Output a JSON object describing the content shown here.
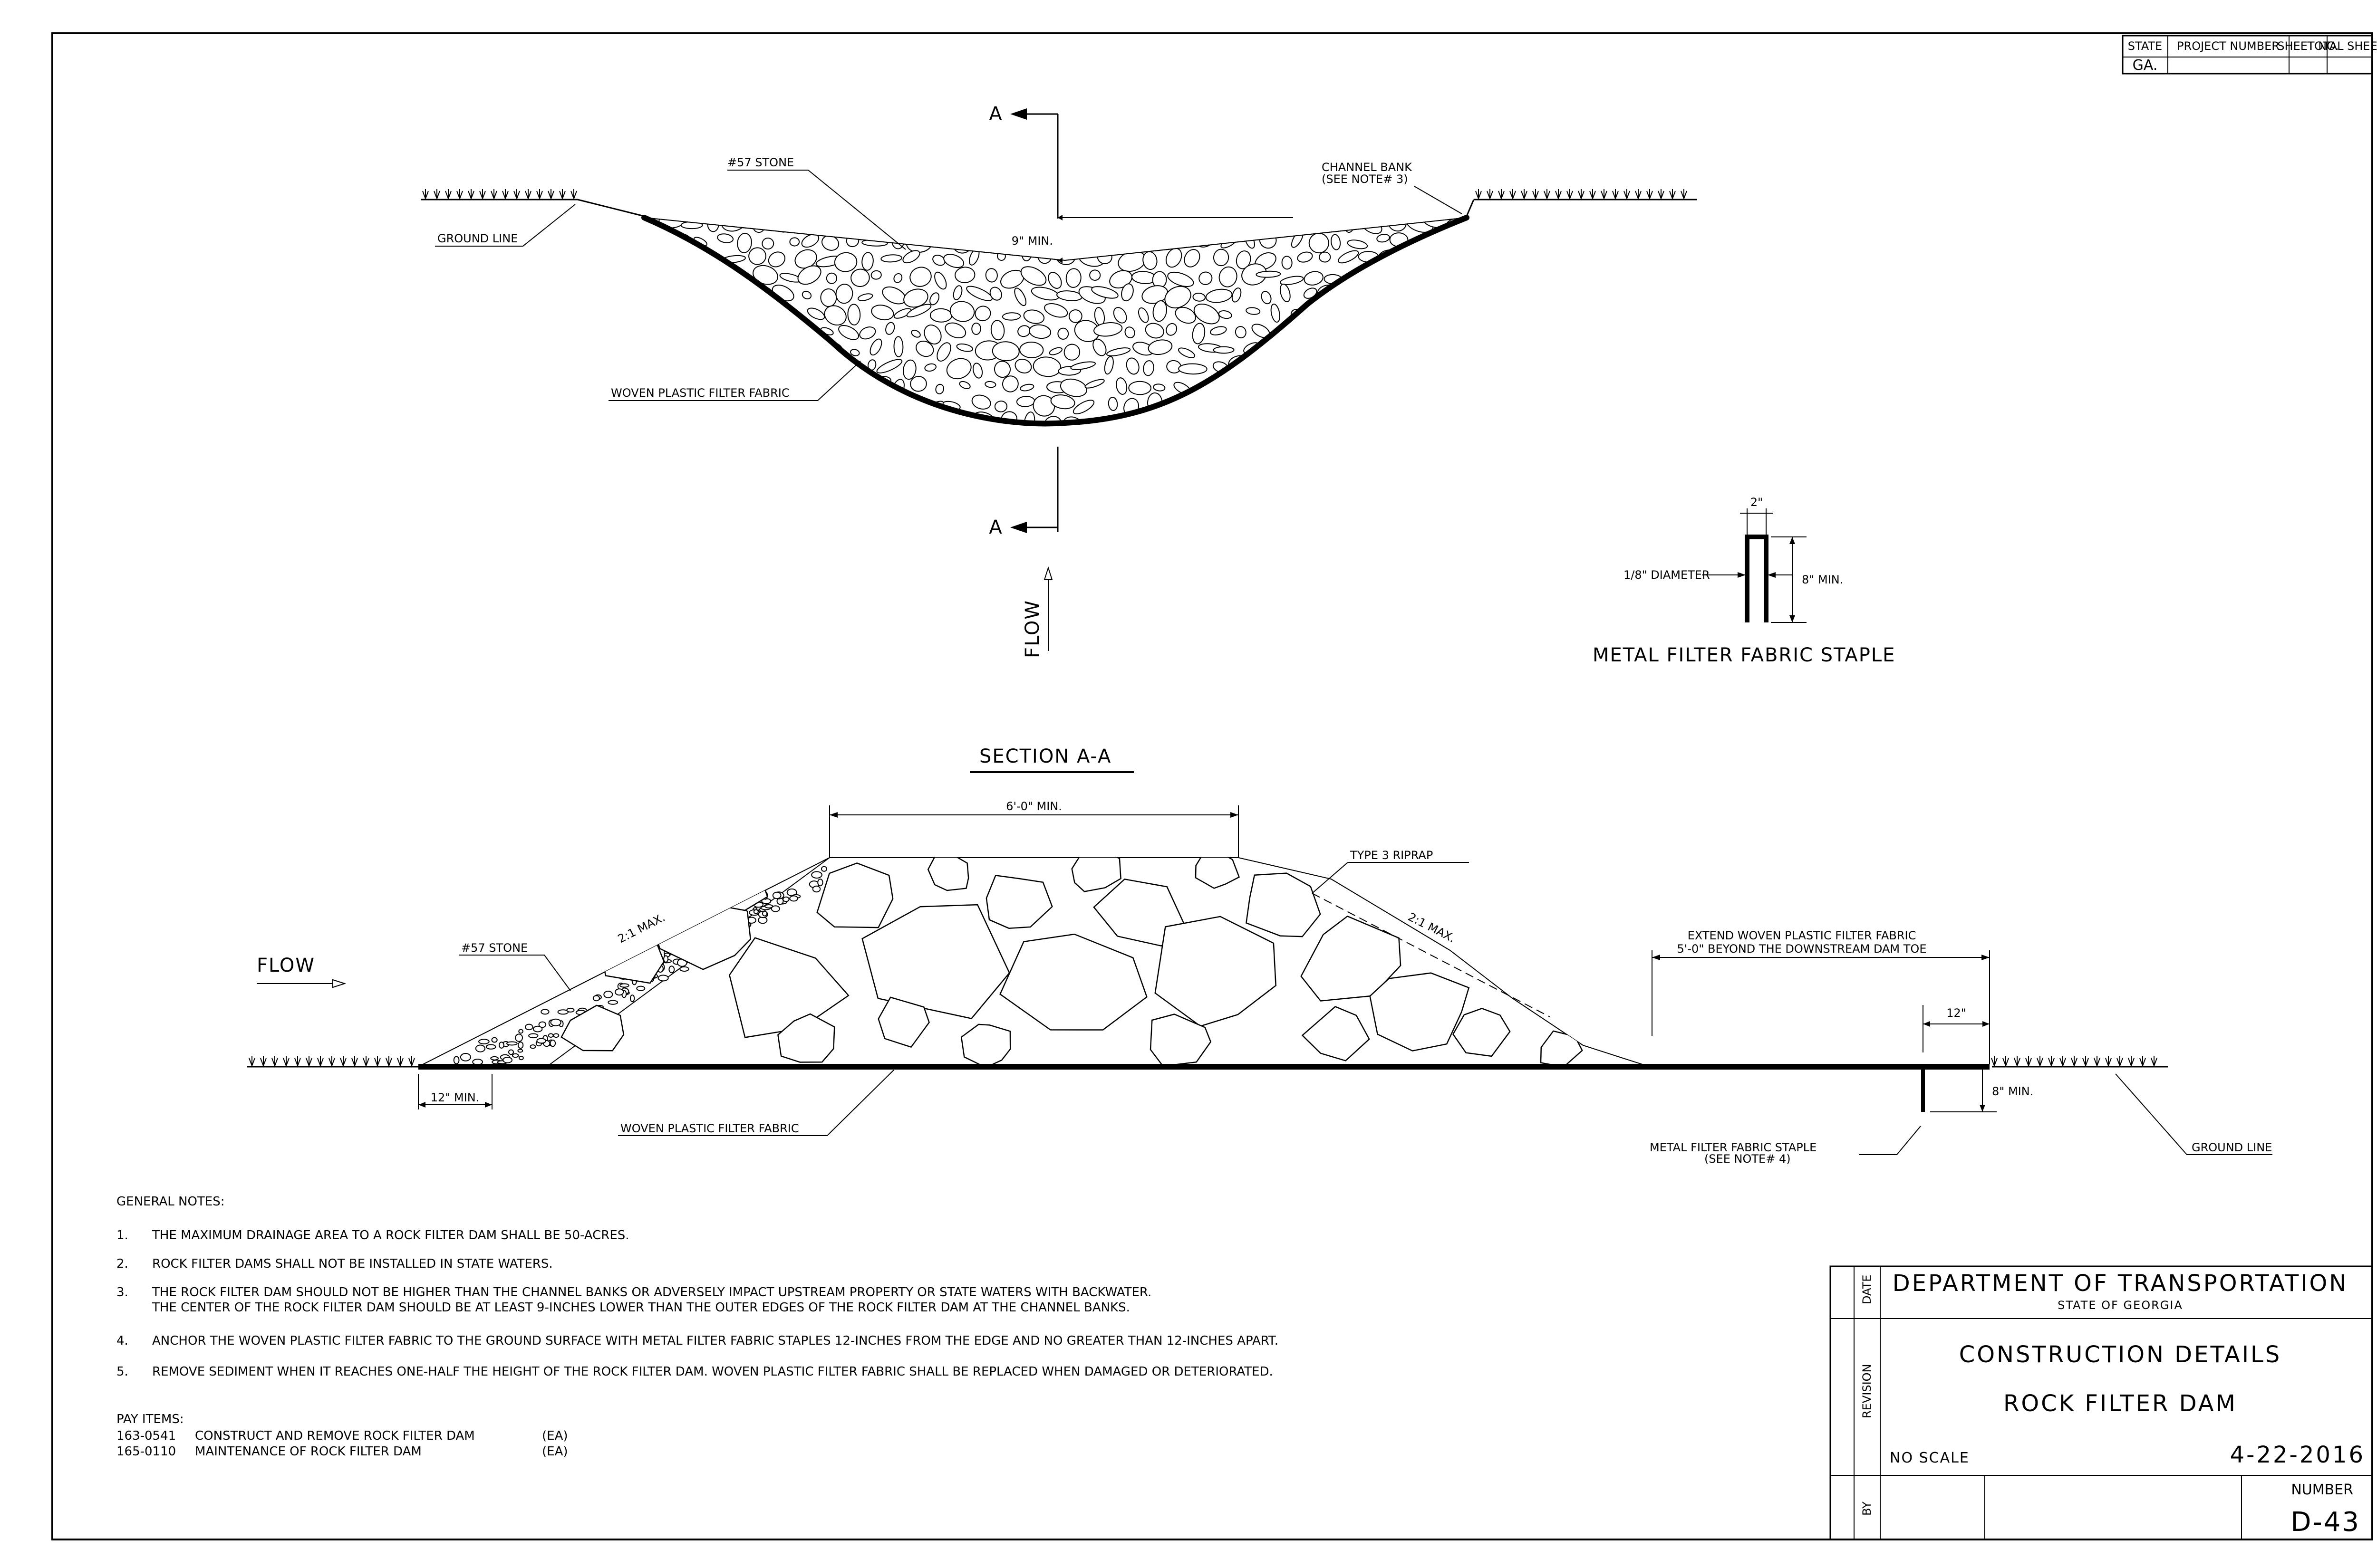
{
  "title_block_top": {
    "headers": [
      "STATE",
      "PROJECT NUMBER",
      "SHEET NO.",
      "TOTAL SHEETS"
    ],
    "state_value": "GA."
  },
  "plan_view": {
    "stone_label": "#57 STONE",
    "channel_bank_label": "CHANNEL BANK",
    "channel_bank_note": "(SEE NOTE# 3)",
    "ground_line_label": "GROUND LINE",
    "dim_9_min": "9\" MIN.",
    "fabric_label": "WOVEN PLASTIC FILTER FABRIC",
    "section_marker": "A",
    "flow_label": "FLOW"
  },
  "staple_detail": {
    "width_dim": "2\"",
    "diameter_label": "1/8\" DIAMETER",
    "height_dim": "8\" MIN.",
    "title": "METAL FILTER FABRIC STAPLE"
  },
  "section_view": {
    "title": "SECTION A-A",
    "top_width_dim": "6'-0\" MIN.",
    "riprap_label": "TYPE 3 RIPRAP",
    "stone_label": "#57 STONE",
    "slope_label": "2:1 MAX.",
    "flow_label": "FLOW",
    "extend_line1": "EXTEND WOVEN PLASTIC FILTER FABRIC",
    "extend_line2": "5'-0\" BEYOND THE DOWNSTREAM DAM TOE",
    "dim_12": "12\"",
    "dim_12_min": "12\" MIN.",
    "dim_8_min": "8\" MIN.",
    "fabric_label": "WOVEN PLASTIC FILTER FABRIC",
    "staple_label": "METAL FILTER FABRIC STAPLE",
    "staple_note": "(SEE NOTE# 4)",
    "ground_line_label": "GROUND LINE"
  },
  "notes": {
    "heading": "GENERAL NOTES:",
    "items": [
      {
        "num": "1.",
        "lines": [
          "THE MAXIMUM DRAINAGE AREA TO A ROCK FILTER DAM SHALL BE 50-ACRES."
        ]
      },
      {
        "num": "2.",
        "lines": [
          "ROCK FILTER DAMS SHALL NOT BE INSTALLED IN STATE WATERS."
        ]
      },
      {
        "num": "3.",
        "lines": [
          "THE ROCK FILTER DAM SHOULD NOT BE HIGHER THAN THE CHANNEL BANKS OR ADVERSELY IMPACT UPSTREAM PROPERTY OR STATE WATERS WITH BACKWATER.",
          "THE CENTER OF THE ROCK FILTER DAM SHOULD BE AT LEAST 9-INCHES LOWER THAN THE OUTER EDGES OF THE ROCK FILTER DAM AT THE CHANNEL BANKS."
        ]
      },
      {
        "num": "4.",
        "lines": [
          "ANCHOR THE WOVEN PLASTIC FILTER FABRIC TO THE GROUND SURFACE WITH METAL FILTER FABRIC STAPLES 12-INCHES FROM THE EDGE AND NO GREATER THAN 12-INCHES APART."
        ]
      },
      {
        "num": "5.",
        "lines": [
          "REMOVE SEDIMENT WHEN IT REACHES ONE-HALF THE HEIGHT OF THE ROCK FILTER DAM. WOVEN PLASTIC FILTER FABRIC SHALL BE REPLACED WHEN DAMAGED OR DETERIORATED."
        ]
      }
    ]
  },
  "pay_items": {
    "heading": "PAY ITEMS:",
    "items": [
      {
        "code": "163-0541",
        "desc": "CONSTRUCT AND REMOVE ROCK FILTER DAM",
        "unit": "(EA)"
      },
      {
        "code": "165-0110",
        "desc": "MAINTENANCE OF ROCK FILTER DAM",
        "unit": "(EA)"
      }
    ]
  },
  "title_block": {
    "side_labels": [
      "DATE",
      "REVISION",
      "BY"
    ],
    "department": "DEPARTMENT OF TRANSPORTATION",
    "state": "STATE OF GEORGIA",
    "heading": "CONSTRUCTION DETAILS",
    "subheading": "ROCK FILTER DAM",
    "scale": "NO SCALE",
    "date": "4-22-2016",
    "number_label": "NUMBER",
    "number": "D-43"
  }
}
